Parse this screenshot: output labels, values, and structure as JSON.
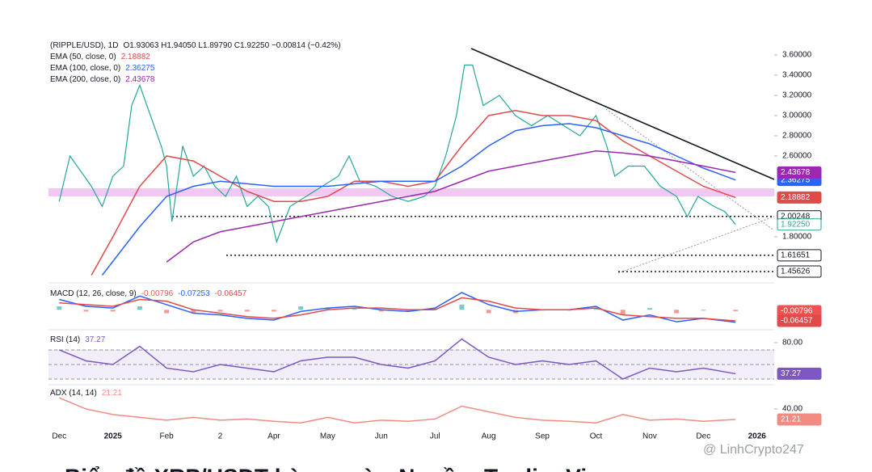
{
  "chart_data": [
    {
      "type": "line",
      "title": "(RIPPLE/USD), 1D",
      "ohlc_text": "O1.93063 H1.94050 L1.89790 C1.92250 −0.00814 (−0.42%)",
      "xlim": [
        -0.2,
        13.32
      ],
      "xticks": [
        {
          "value": 0,
          "label": "Dec"
        },
        {
          "value": 1,
          "label": "2025"
        },
        {
          "value": 2,
          "label": "Feb"
        },
        {
          "value": 3,
          "label": "2"
        },
        {
          "value": 4,
          "label": "Apr"
        },
        {
          "value": 5,
          "label": "May"
        },
        {
          "value": 6,
          "label": "Jun"
        },
        {
          "value": 7,
          "label": "Jul"
        },
        {
          "value": 8,
          "label": "Aug"
        },
        {
          "value": 9,
          "label": "Sep"
        },
        {
          "value": 10,
          "label": "Oct"
        },
        {
          "value": 11,
          "label": "Nov"
        },
        {
          "value": 12,
          "label": "Dec"
        },
        {
          "value": 13,
          "label": "2026"
        }
      ],
      "ylim": [
        1.384,
        3.784
      ],
      "yticks": [
        {
          "value": 3.6,
          "label": "3.60000"
        },
        {
          "value": 3.4,
          "label": "3.40000"
        },
        {
          "value": 3.2,
          "label": "3.20000"
        },
        {
          "value": 3.0,
          "label": "3.00000"
        },
        {
          "value": 2.8,
          "label": "2.80000"
        },
        {
          "value": 2.6,
          "label": "2.60000"
        },
        {
          "value": 1.8,
          "label": "1.80000"
        }
      ],
      "levels": [
        {
          "value": 2.00248,
          "label": "2.00248"
        },
        {
          "value": 1.61651,
          "label": "1.61651"
        },
        {
          "value": 1.45626,
          "label": "1.45626"
        }
      ],
      "zone": [
        2.2,
        2.28
      ],
      "series": [
        {
          "color": "#26a69a",
          "last_label": "1.92250",
          "x": [
            0,
            0.2,
            0.4,
            0.6,
            0.8,
            1.0,
            1.2,
            1.35,
            1.5,
            1.7,
            1.9,
            2.0,
            2.1,
            2.3,
            2.5,
            2.7,
            2.9,
            3.1,
            3.3,
            3.5,
            3.7,
            3.9,
            4.05,
            4.3,
            4.6,
            4.9,
            5.2,
            5.4,
            5.6,
            5.9,
            6.2,
            6.5,
            6.8,
            7.0,
            7.2,
            7.4,
            7.55,
            7.7,
            7.9,
            8.2,
            8.5,
            8.8,
            9.1,
            9.4,
            9.7,
            10.0,
            10.2,
            10.35,
            10.6,
            10.9,
            11.2,
            11.5,
            11.7,
            11.9,
            12.2,
            12.4,
            12.6
          ],
          "values": [
            2.15,
            2.6,
            2.45,
            2.3,
            2.1,
            2.4,
            2.5,
            3.1,
            3.3,
            3.0,
            2.7,
            2.5,
            1.95,
            2.7,
            2.4,
            2.5,
            2.3,
            2.2,
            2.4,
            2.1,
            2.2,
            2.1,
            1.75,
            2.1,
            2.2,
            2.3,
            2.4,
            2.6,
            2.35,
            2.3,
            2.2,
            2.15,
            2.2,
            2.3,
            2.6,
            3.0,
            3.5,
            3.5,
            3.1,
            3.2,
            3.0,
            2.9,
            3.0,
            2.9,
            2.8,
            3.0,
            2.7,
            2.4,
            2.5,
            2.5,
            2.3,
            2.2,
            2.0,
            2.2,
            2.1,
            2.05,
            1.9225
          ]
        },
        {
          "name": "EMA (50, close, 0)",
          "color": "#e04a4a",
          "x": [
            0.6,
            1.0,
            1.5,
            2.0,
            2.5,
            3.0,
            3.5,
            4.0,
            4.5,
            5.0,
            5.5,
            6.0,
            6.5,
            7.0,
            7.5,
            8.0,
            8.5,
            9.0,
            9.5,
            10.0,
            10.5,
            11.0,
            11.5,
            12.0,
            12.6
          ],
          "values": [
            1.42,
            1.8,
            2.3,
            2.6,
            2.55,
            2.4,
            2.25,
            2.15,
            2.15,
            2.2,
            2.35,
            2.35,
            2.3,
            2.35,
            2.7,
            3.0,
            3.05,
            3.0,
            3.0,
            2.95,
            2.75,
            2.6,
            2.45,
            2.3,
            2.18882
          ]
        },
        {
          "name": "EMA (100, close, 0)",
          "color": "#2962ff",
          "x": [
            0.8,
            1.5,
            2.0,
            2.5,
            3.0,
            4.0,
            5.0,
            6.0,
            7.0,
            7.5,
            8.0,
            8.5,
            9.0,
            9.5,
            10.0,
            10.5,
            11.0,
            11.5,
            12.0,
            12.6
          ],
          "values": [
            1.42,
            1.9,
            2.2,
            2.3,
            2.35,
            2.3,
            2.3,
            2.35,
            2.35,
            2.5,
            2.7,
            2.85,
            2.9,
            2.92,
            2.88,
            2.8,
            2.72,
            2.6,
            2.48,
            2.36275
          ]
        },
        {
          "name": "EMA (200, close, 0)",
          "color": "#9c27b0",
          "x": [
            2.0,
            2.5,
            3.0,
            4.0,
            5.0,
            6.0,
            7.0,
            7.5,
            8.0,
            9.0,
            10.0,
            10.5,
            11.0,
            11.5,
            12.0,
            12.6
          ],
          "values": [
            1.55,
            1.75,
            1.85,
            1.95,
            2.05,
            2.15,
            2.25,
            2.35,
            2.45,
            2.55,
            2.65,
            2.63,
            2.6,
            2.55,
            2.5,
            2.43678
          ]
        }
      ]
    },
    {
      "type": "line",
      "title": "MACD (12, 26, close, 9)",
      "ylim": [
        -0.088,
        0.133
      ],
      "series": [
        {
          "color": "#ef5350",
          "bars": true,
          "x": [
            0,
            0.5,
            1,
            1.5,
            2,
            2.5,
            3,
            3.5,
            4,
            4.5,
            5,
            5.5,
            6,
            6.5,
            7,
            7.5,
            8,
            8.5,
            9,
            9.5,
            10,
            10.5,
            11,
            11.5,
            12,
            12.6
          ],
          "values": [
            0.02,
            -0.01,
            -0.01,
            0.02,
            -0.02,
            -0.02,
            -0.01,
            -0.01,
            -0.01,
            0.02,
            0.01,
            0.01,
            -0.01,
            -0.01,
            0.01,
            0.03,
            -0.02,
            -0.02,
            0,
            0,
            0.01,
            -0.03,
            0.01,
            -0.02,
            0,
            -0.00796
          ]
        },
        {
          "color": "#2962ff",
          "x": [
            0,
            0.5,
            1,
            1.5,
            2,
            2.5,
            3,
            3.5,
            4,
            4.5,
            5,
            5.5,
            6,
            6.5,
            7,
            7.5,
            8,
            8.5,
            9,
            9.5,
            10,
            10.5,
            11,
            11.5,
            12,
            12.6
          ],
          "values": [
            0.06,
            0.02,
            0.01,
            0.08,
            0.03,
            -0.02,
            -0.03,
            -0.05,
            -0.06,
            -0.01,
            0.01,
            0.02,
            0.0,
            -0.01,
            0.01,
            0.1,
            0.03,
            -0.01,
            0.0,
            0.0,
            0.02,
            -0.06,
            -0.03,
            -0.07,
            -0.05,
            -0.07253
          ]
        },
        {
          "color": "#e04a4a",
          "x": [
            0,
            0.5,
            1,
            1.5,
            2,
            2.5,
            3,
            3.5,
            4,
            4.5,
            5,
            5.5,
            6,
            6.5,
            7,
            7.5,
            8,
            8.5,
            9,
            9.5,
            10,
            10.5,
            11,
            11.5,
            12,
            12.6
          ],
          "values": [
            0.04,
            0.03,
            0.02,
            0.06,
            0.05,
            0.0,
            -0.02,
            -0.04,
            -0.05,
            -0.03,
            0.0,
            0.01,
            0.01,
            0.0,
            0.0,
            0.07,
            0.05,
            0.01,
            0.0,
            0.0,
            0.01,
            -0.03,
            -0.04,
            -0.05,
            -0.05,
            -0.06457
          ]
        }
      ]
    },
    {
      "type": "line",
      "title": "RSI (14)",
      "ylim": [
        23.3,
        93.3
      ],
      "yticks": [
        {
          "value": 80,
          "label": "80.00"
        }
      ],
      "bands": [
        30,
        50,
        70
      ],
      "series": [
        {
          "color": "#7e57c2",
          "x": [
            0,
            0.5,
            1,
            1.5,
            2,
            2.5,
            3,
            3.5,
            4,
            4.5,
            5,
            5.5,
            6,
            6.5,
            7,
            7.5,
            8,
            8.5,
            9,
            9.5,
            10,
            10.5,
            11,
            11.5,
            12,
            12.6
          ],
          "values": [
            70,
            55,
            50,
            75,
            45,
            40,
            50,
            45,
            40,
            55,
            60,
            60,
            50,
            45,
            55,
            85,
            60,
            50,
            55,
            50,
            55,
            30,
            45,
            40,
            45,
            37.27
          ]
        }
      ]
    },
    {
      "type": "line",
      "title": "ADX (14, 14)",
      "ylim": [
        -2,
        80.6
      ],
      "yticks": [
        {
          "value": 40,
          "label": "40.00"
        }
      ],
      "series": [
        {
          "color": "#f28b82",
          "x": [
            0,
            0.5,
            1,
            1.5,
            2,
            2.5,
            3,
            3.5,
            4,
            4.5,
            5,
            5.5,
            6,
            6.5,
            7,
            7.5,
            8,
            8.5,
            9,
            9.5,
            10,
            10.5,
            11,
            11.5,
            12,
            12.6
          ],
          "values": [
            60,
            40,
            30,
            25,
            20,
            25,
            20,
            22,
            18,
            15,
            25,
            15,
            20,
            18,
            22,
            45,
            35,
            25,
            20,
            18,
            15,
            30,
            20,
            22,
            18,
            21.21
          ]
        }
      ]
    }
  ],
  "watermark": "@ LinhCrypto247",
  "caption": "Biểu đồ XRP/USDT hàng ngày. Nguồn: TradingView"
}
